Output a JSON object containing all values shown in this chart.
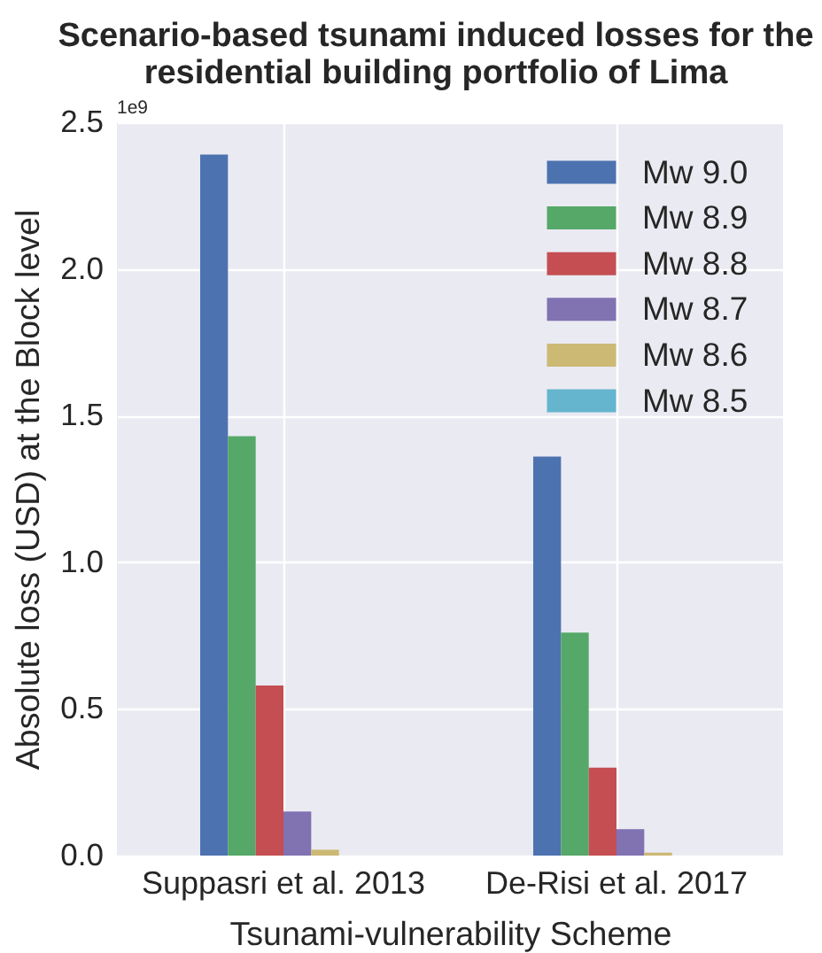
{
  "chart_data": {
    "type": "bar",
    "title": "Scenario-based tsunami induced losses for the residential building portfolio of Lima",
    "xlabel": "Tsunami-vulnerability Scheme",
    "ylabel": "Absolute loss (USD) at the Block level",
    "categories": [
      "Suppasri et al. 2013",
      "De-Risi et al. 2017"
    ],
    "series": [
      {
        "name": "Mw 9.0",
        "color": "#4c72b0",
        "values": [
          2.39,
          1.36
        ]
      },
      {
        "name": "Mw 8.9",
        "color": "#55a868",
        "values": [
          1.43,
          0.76
        ]
      },
      {
        "name": "Mw 8.8",
        "color": "#c44e52",
        "values": [
          0.58,
          0.3
        ]
      },
      {
        "name": "Mw 8.7",
        "color": "#8172b2",
        "values": [
          0.15,
          0.09
        ]
      },
      {
        "name": "Mw 8.6",
        "color": "#ccb974",
        "values": [
          0.02,
          0.01
        ]
      },
      {
        "name": "Mw 8.5",
        "color": "#64b5cd",
        "values": [
          0,
          0
        ]
      }
    ],
    "ylim": [
      0,
      2.5
    ],
    "yticks": [
      {
        "value": 0,
        "label": "0.0"
      },
      0.5,
      {
        "value": 1,
        "label": "1.0"
      },
      1.5,
      {
        "value": 2,
        "label": "2.0"
      },
      2.5
    ],
    "grid": true,
    "legend": "top right",
    "annotations": [
      "1e9"
    ]
  }
}
